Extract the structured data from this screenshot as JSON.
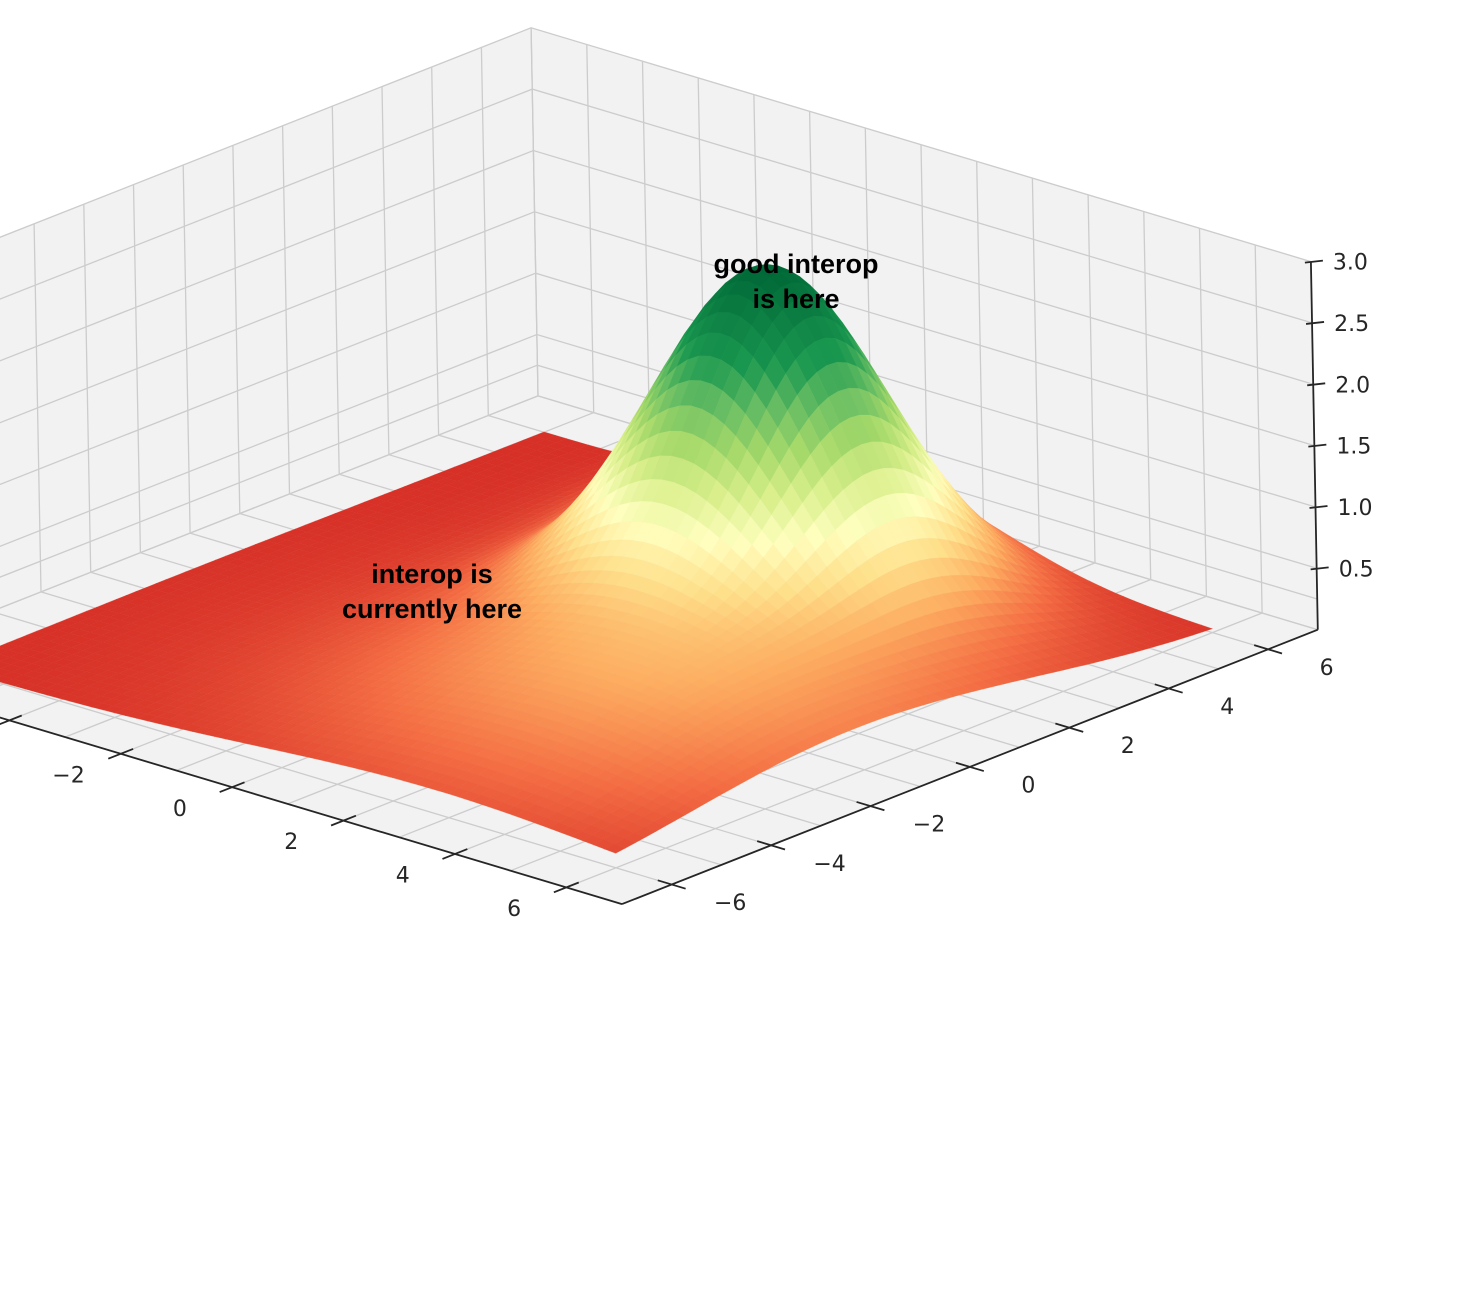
{
  "chart_data": {
    "type": "surface",
    "x": {
      "ticks": [
        -6,
        -4,
        -2,
        0,
        2,
        4,
        6
      ],
      "tick_labels": [
        "−6",
        "−4",
        "−2",
        "0",
        "2",
        "4",
        "6"
      ],
      "range": [
        -7,
        7
      ]
    },
    "y": {
      "ticks": [
        -6,
        -4,
        -2,
        0,
        2,
        4,
        6
      ],
      "tick_labels": [
        "−6",
        "−4",
        "−2",
        "0",
        "2",
        "4",
        "6"
      ],
      "range": [
        -7,
        7
      ]
    },
    "z": {
      "ticks": [
        0.5,
        1.0,
        1.5,
        2.0,
        2.5,
        3.0
      ],
      "tick_labels": [
        "0.5",
        "1.0",
        "1.5",
        "2.0",
        "2.5",
        "3.0"
      ],
      "range": [
        0,
        3
      ]
    },
    "grid": true,
    "colormap": "RdYlGn",
    "function": {
      "description": "sum of gaussian bumps",
      "bumps": [
        {
          "x0": 1.0,
          "y0": 2.8,
          "amp": 2.55,
          "sigma": 1.6
        },
        {
          "x0": -1.2,
          "y0": 5.0,
          "amp": 0.85,
          "sigma": 1.2
        },
        {
          "x0": 2.8,
          "y0": -1.2,
          "amp": 0.6,
          "sigma": 3.2
        }
      ]
    },
    "annotations": [
      {
        "line1": "good interop",
        "line2": "is here"
      },
      {
        "line1": "interop is",
        "line2": "currently here"
      }
    ],
    "colors": {
      "pane": "#f2f2f2",
      "grid": "#cccccc",
      "axis": "#262626"
    }
  }
}
